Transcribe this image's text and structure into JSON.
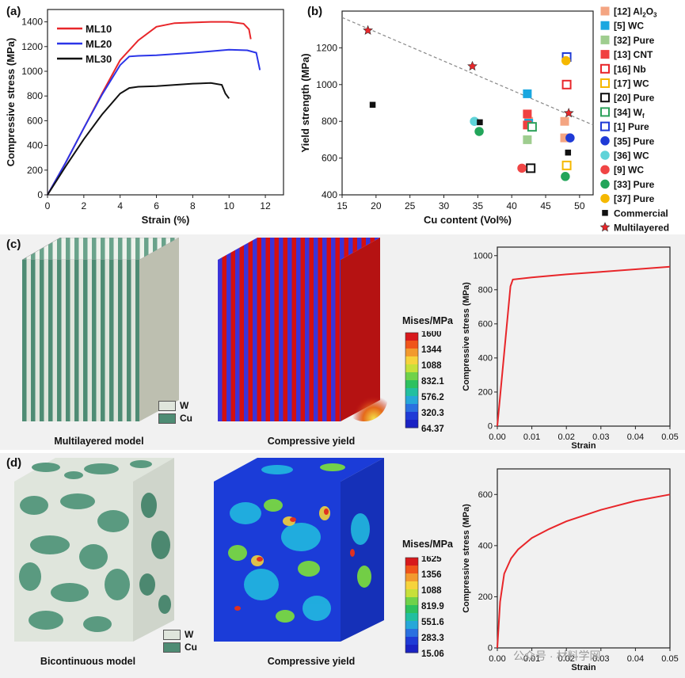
{
  "panels": {
    "a": {
      "label": "(a)"
    },
    "b": {
      "label": "(b)"
    },
    "c": {
      "label": "(c)",
      "model_caption": "Multilayered model",
      "yield_caption": "Compressive yield"
    },
    "d": {
      "label": "(d)",
      "model_caption": "Bicontinuous model",
      "yield_caption": "Compressive yield"
    }
  },
  "material_legend": {
    "w": "W",
    "cu": "Cu"
  },
  "colors": {
    "w": "#dfe5dc",
    "cu": "#4e8c74",
    "row_bg": "#f1f1f1"
  },
  "colorbars": {
    "c": {
      "title": "Mises/MPa",
      "ticks": [
        "1600",
        "1344",
        "1088",
        "832.1",
        "576.2",
        "320.3",
        "64.37"
      ]
    },
    "d": {
      "title": "Mises/MPa",
      "ticks": [
        "1625",
        "1356",
        "1088",
        "819.9",
        "551.6",
        "283.3",
        "15.06"
      ]
    }
  },
  "watermark": "公众号 · 材料学网",
  "chart_data": [
    {
      "id": "a",
      "type": "line",
      "xlabel": "Strain (%)",
      "ylabel": "Compressive stress (MPa)",
      "xlim": [
        0,
        13
      ],
      "ylim": [
        0,
        1500
      ],
      "xticks": [
        "0",
        "2",
        "4",
        "6",
        "8",
        "10",
        "12"
      ],
      "yticks": [
        "0",
        "200",
        "400",
        "600",
        "800",
        "1000",
        "1200",
        "1400"
      ],
      "legend_position": "top-left",
      "series": [
        {
          "name": "ML10",
          "color": "#e8262a",
          "points": [
            [
              0,
              0
            ],
            [
              1,
              260
            ],
            [
              2,
              540
            ],
            [
              3,
              820
            ],
            [
              4,
              1090
            ],
            [
              5,
              1250
            ],
            [
              6,
              1360
            ],
            [
              7,
              1390
            ],
            [
              8,
              1395
            ],
            [
              9,
              1400
            ],
            [
              10,
              1400
            ],
            [
              10.8,
              1385
            ],
            [
              11.1,
              1340
            ],
            [
              11.2,
              1260
            ]
          ]
        },
        {
          "name": "ML20",
          "color": "#2b35e8",
          "points": [
            [
              0,
              0
            ],
            [
              1,
              260
            ],
            [
              2,
              540
            ],
            [
              3,
              810
            ],
            [
              4,
              1050
            ],
            [
              4.5,
              1120
            ],
            [
              5,
              1125
            ],
            [
              6,
              1130
            ],
            [
              8,
              1150
            ],
            [
              10,
              1175
            ],
            [
              11,
              1170
            ],
            [
              11.5,
              1150
            ],
            [
              11.7,
              1010
            ]
          ]
        },
        {
          "name": "ML30",
          "color": "#111111",
          "points": [
            [
              0,
              0
            ],
            [
              1,
              230
            ],
            [
              2,
              450
            ],
            [
              3,
              650
            ],
            [
              4,
              820
            ],
            [
              4.5,
              865
            ],
            [
              5,
              875
            ],
            [
              6,
              880
            ],
            [
              8,
              900
            ],
            [
              9,
              905
            ],
            [
              9.6,
              890
            ],
            [
              9.8,
              820
            ],
            [
              10,
              780
            ]
          ]
        }
      ]
    },
    {
      "id": "b",
      "type": "scatter",
      "xlabel": "Cu content (Vol%)",
      "ylabel": "Yield strength (MPa)",
      "xlim": [
        15,
        52
      ],
      "ylim": [
        400,
        1400
      ],
      "xticks": [
        "15",
        "20",
        "25",
        "30",
        "35",
        "40",
        "45",
        "50"
      ],
      "yticks": [
        "400",
        "600",
        "800",
        "1000",
        "1200"
      ],
      "legend_position": "outside-right",
      "trendline": {
        "x": [
          15,
          52
        ],
        "y": [
          1365,
          780
        ]
      },
      "series": [
        {
          "name": "[12] Al2O3",
          "marker": "square",
          "color": "#f4a582",
          "filled": true,
          "points": [
            [
              42.5,
              800
            ],
            [
              47.8,
              800
            ],
            [
              47.8,
              710
            ]
          ]
        },
        {
          "name": "[5] WC",
          "marker": "square",
          "color": "#1aa7e0",
          "filled": true,
          "points": [
            [
              42.3,
              950
            ],
            [
              42.5,
              790
            ]
          ]
        },
        {
          "name": "[32] Pure",
          "marker": "square",
          "color": "#9fcd8f",
          "filled": true,
          "points": [
            [
              42.3,
              700
            ]
          ]
        },
        {
          "name": "[13] CNT",
          "marker": "square",
          "color": "#f04040",
          "filled": true,
          "points": [
            [
              42.3,
              840
            ],
            [
              42.3,
              780
            ]
          ]
        },
        {
          "name": "[16] Nb",
          "marker": "square",
          "color": "#e8262a",
          "filled": false,
          "points": [
            [
              48.1,
              1000
            ]
          ]
        },
        {
          "name": "[17] WC",
          "marker": "square",
          "color": "#f5b800",
          "filled": false,
          "points": [
            [
              48.1,
              560
            ]
          ]
        },
        {
          "name": "[20] Pure",
          "marker": "square",
          "color": "#111111",
          "filled": false,
          "points": [
            [
              42.8,
              545
            ]
          ]
        },
        {
          "name": "[34] Wf",
          "marker": "square",
          "color": "#2ca05a",
          "filled": false,
          "points": [
            [
              43.0,
              770
            ]
          ]
        },
        {
          "name": "[1] Pure",
          "marker": "square",
          "color": "#1f3ad6",
          "filled": false,
          "points": [
            [
              48.1,
              1150
            ]
          ]
        },
        {
          "name": "[35] Pure",
          "marker": "circle",
          "color": "#1f3ad6",
          "filled": true,
          "points": [
            [
              48.6,
              710
            ]
          ]
        },
        {
          "name": "[36] WC",
          "marker": "circle",
          "color": "#5fd3d8",
          "filled": true,
          "points": [
            [
              34.5,
              800
            ]
          ]
        },
        {
          "name": "[9] WC",
          "marker": "circle",
          "color": "#f04545",
          "filled": true,
          "points": [
            [
              41.5,
              545
            ]
          ]
        },
        {
          "name": "[33] Pure",
          "marker": "circle",
          "color": "#22a55a",
          "filled": true,
          "points": [
            [
              35.2,
              745
            ],
            [
              47.9,
              500
            ]
          ]
        },
        {
          "name": "[37] Pure",
          "marker": "circle",
          "color": "#f5b800",
          "filled": true,
          "points": [
            [
              48.0,
              1130
            ]
          ]
        },
        {
          "name": "Commercial",
          "marker": "square-small",
          "color": "#111111",
          "filled": true,
          "points": [
            [
              19.5,
              890
            ],
            [
              35.3,
              795
            ],
            [
              48.3,
              630
            ]
          ]
        },
        {
          "name": "Multilayered",
          "marker": "star",
          "color": "#e8262a",
          "filled": true,
          "points": [
            [
              18.8,
              1295
            ],
            [
              34.2,
              1100
            ],
            [
              48.4,
              845
            ]
          ]
        }
      ]
    },
    {
      "id": "c",
      "type": "line",
      "xlabel": "Strain",
      "ylabel": "Compressive stress (MPa)",
      "xlim": [
        0,
        0.05
      ],
      "ylim": [
        0,
        1050
      ],
      "xticks": [
        "0.00",
        "0.01",
        "0.02",
        "0.03",
        "0.04",
        "0.05"
      ],
      "yticks": [
        "0",
        "200",
        "400",
        "600",
        "800",
        "1000"
      ],
      "series": [
        {
          "name": "",
          "color": "#e8262a",
          "points": [
            [
              0,
              0
            ],
            [
              0.0038,
              820
            ],
            [
              0.0045,
              860
            ],
            [
              0.01,
              872
            ],
            [
              0.02,
              890
            ],
            [
              0.03,
              905
            ],
            [
              0.04,
              920
            ],
            [
              0.05,
              935
            ]
          ]
        }
      ]
    },
    {
      "id": "d",
      "type": "line",
      "xlabel": "Strain",
      "ylabel": "Compressive stress (MPa)",
      "xlim": [
        0,
        0.05
      ],
      "ylim": [
        0,
        700
      ],
      "xticks": [
        "0.00",
        "0.01",
        "0.02",
        "0.03",
        "0.04",
        "0.05"
      ],
      "yticks": [
        "0",
        "200",
        "400",
        "600"
      ],
      "series": [
        {
          "name": "",
          "color": "#e8262a",
          "points": [
            [
              0,
              0
            ],
            [
              0.0008,
              180
            ],
            [
              0.002,
              290
            ],
            [
              0.004,
              350
            ],
            [
              0.006,
              385
            ],
            [
              0.01,
              430
            ],
            [
              0.015,
              465
            ],
            [
              0.02,
              495
            ],
            [
              0.03,
              540
            ],
            [
              0.04,
              575
            ],
            [
              0.05,
              600
            ]
          ]
        }
      ]
    }
  ]
}
